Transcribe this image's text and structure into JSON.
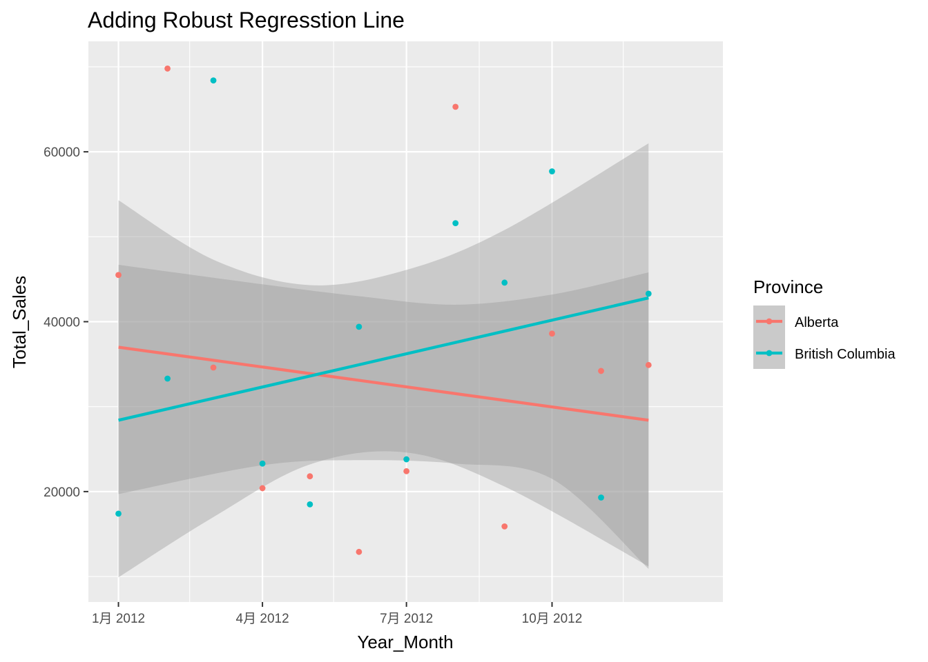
{
  "chart_data": {
    "type": "scatter",
    "title": "Adding Robust Regresstion Line",
    "xlabel": "Year_Month",
    "ylabel": "Total_Sales",
    "x_range": [
      "2011-12-13",
      "2013-01-17"
    ],
    "ylim": [
      7000,
      73000
    ],
    "x_ticks": [
      {
        "date": "2012-01-01",
        "label": "1月 2012"
      },
      {
        "date": "2012-04-01",
        "label": "4月 2012"
      },
      {
        "date": "2012-07-01",
        "label": "7月 2012"
      },
      {
        "date": "2012-10-01",
        "label": "10月 2012"
      }
    ],
    "x_minor_ticks": [
      "2012-02-15",
      "2012-05-16",
      "2012-08-16",
      "2012-11-15"
    ],
    "y_ticks": [
      20000,
      40000,
      60000
    ],
    "grid": true,
    "legend": {
      "title": "Province",
      "placement": "right"
    },
    "series": [
      {
        "name": "Alberta",
        "color": "#F8766D",
        "points": [
          {
            "x": "2012-01-01",
            "y": 45500
          },
          {
            "x": "2012-02-01",
            "y": 69800
          },
          {
            "x": "2012-03-01",
            "y": 34600
          },
          {
            "x": "2012-04-01",
            "y": 20400
          },
          {
            "x": "2012-05-01",
            "y": 21800
          },
          {
            "x": "2012-06-01",
            "y": 12900
          },
          {
            "x": "2012-07-01",
            "y": 22400
          },
          {
            "x": "2012-08-01",
            "y": 65300
          },
          {
            "x": "2012-09-01",
            "y": 15900
          },
          {
            "x": "2012-10-01",
            "y": 38600
          },
          {
            "x": "2012-11-01",
            "y": 34200
          },
          {
            "x": "2012-12-01",
            "y": 34900
          }
        ],
        "fit": {
          "x0": "2012-01-01",
          "y0": 37000,
          "x1": "2012-12-01",
          "y1": 28400
        },
        "band": {
          "upper": [
            {
              "x": "2012-01-01",
              "y": 46700
            },
            {
              "x": "2012-04-01",
              "y": 44400
            },
            {
              "x": "2012-06-01",
              "y": 43000
            },
            {
              "x": "2012-08-01",
              "y": 42000
            },
            {
              "x": "2012-10-01",
              "y": 43200
            },
            {
              "x": "2012-12-01",
              "y": 45800
            }
          ],
          "lower": [
            {
              "x": "2012-01-01",
              "y": 19700
            },
            {
              "x": "2012-04-01",
              "y": 23100
            },
            {
              "x": "2012-06-01",
              "y": 23700
            },
            {
              "x": "2012-08-01",
              "y": 23300
            },
            {
              "x": "2012-10-01",
              "y": 21500
            },
            {
              "x": "2012-12-01",
              "y": 10900
            }
          ]
        }
      },
      {
        "name": "British Columbia",
        "color": "#00BFC4",
        "points": [
          {
            "x": "2012-01-01",
            "y": 17400
          },
          {
            "x": "2012-02-01",
            "y": 33300
          },
          {
            "x": "2012-03-01",
            "y": 68400
          },
          {
            "x": "2012-04-01",
            "y": 23300
          },
          {
            "x": "2012-05-01",
            "y": 18500
          },
          {
            "x": "2012-06-01",
            "y": 39400
          },
          {
            "x": "2012-07-01",
            "y": 23800
          },
          {
            "x": "2012-08-01",
            "y": 51600
          },
          {
            "x": "2012-09-01",
            "y": 44600
          },
          {
            "x": "2012-10-01",
            "y": 57700
          },
          {
            "x": "2012-11-01",
            "y": 19300
          },
          {
            "x": "2012-12-01",
            "y": 43300
          }
        ],
        "fit": {
          "x0": "2012-01-01",
          "y0": 28400,
          "x1": "2012-12-01",
          "y1": 42800
        },
        "band": {
          "upper": [
            {
              "x": "2012-01-01",
              "y": 54300
            },
            {
              "x": "2012-03-01",
              "y": 47300
            },
            {
              "x": "2012-05-01",
              "y": 44300
            },
            {
              "x": "2012-07-01",
              "y": 46100
            },
            {
              "x": "2012-09-01",
              "y": 50800
            },
            {
              "x": "2012-12-01",
              "y": 61000
            }
          ],
          "lower": [
            {
              "x": "2012-01-01",
              "y": 9900
            },
            {
              "x": "2012-03-01",
              "y": 17000
            },
            {
              "x": "2012-05-01",
              "y": 23200
            },
            {
              "x": "2012-07-01",
              "y": 24600
            },
            {
              "x": "2012-09-01",
              "y": 20600
            },
            {
              "x": "2012-12-01",
              "y": 11200
            }
          ]
        }
      }
    ]
  }
}
